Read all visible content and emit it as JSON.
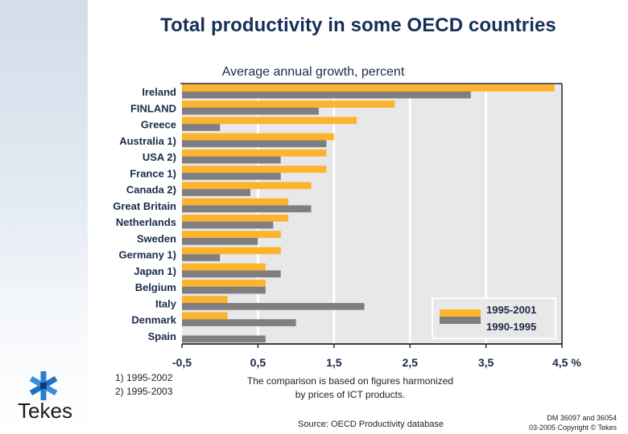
{
  "slide": {
    "title": "Total productivity in some OECD countries",
    "footnotes": [
      "1) 1995-2002",
      "2) 1995-2003"
    ],
    "note_lines": [
      "The comparison is based on figures harmonized",
      "by prices of ICT products."
    ],
    "source": "Source: OECD Productivity database",
    "copyright_lines": [
      "DM 36097 and 36054",
      "03-2005 Copyright © Tekes"
    ],
    "logo": {
      "icon": "tekes-star-icon",
      "text": "Tekes"
    }
  },
  "colors": {
    "series_1": "#FDB32A",
    "series_2": "#7F7F7F",
    "plot_bg": "#E8E8E8",
    "text": "#1B2A4A",
    "title": "#14305A"
  },
  "chart_data": {
    "type": "bar",
    "orientation": "horizontal",
    "title": "Average annual growth, percent",
    "xlabel": "%",
    "ylabel": "",
    "xlim": [
      -0.5,
      4.5
    ],
    "xticks": [
      -0.5,
      0.5,
      1.5,
      2.5,
      3.5,
      4.5
    ],
    "xtick_labels": [
      "-0,5",
      "0,5",
      "1,5",
      "2,5",
      "3,5",
      "4,5 %"
    ],
    "grid": "vertical",
    "legend_position": "bottom-right",
    "categories": [
      "Ireland",
      "FINLAND",
      "Greece",
      "Australia 1)",
      "USA 2)",
      "France 1)",
      "Canada 2)",
      "Great Britain",
      "Netherlands",
      "Sweden",
      "Germany 1)",
      "Japan 1)",
      "Belgium",
      "Italy",
      "Denmark",
      "Spain"
    ],
    "series": [
      {
        "name": "1995-2001",
        "values": [
          4.4,
          2.3,
          1.8,
          1.5,
          1.4,
          1.4,
          1.2,
          0.9,
          0.9,
          0.8,
          0.8,
          0.6,
          0.6,
          0.1,
          0.1,
          -0.5
        ]
      },
      {
        "name": "1990-1995",
        "values": [
          3.3,
          1.3,
          0.0,
          1.4,
          0.8,
          0.8,
          0.4,
          1.2,
          0.7,
          0.5,
          0.0,
          0.8,
          0.6,
          1.9,
          1.0,
          0.6
        ]
      }
    ]
  }
}
